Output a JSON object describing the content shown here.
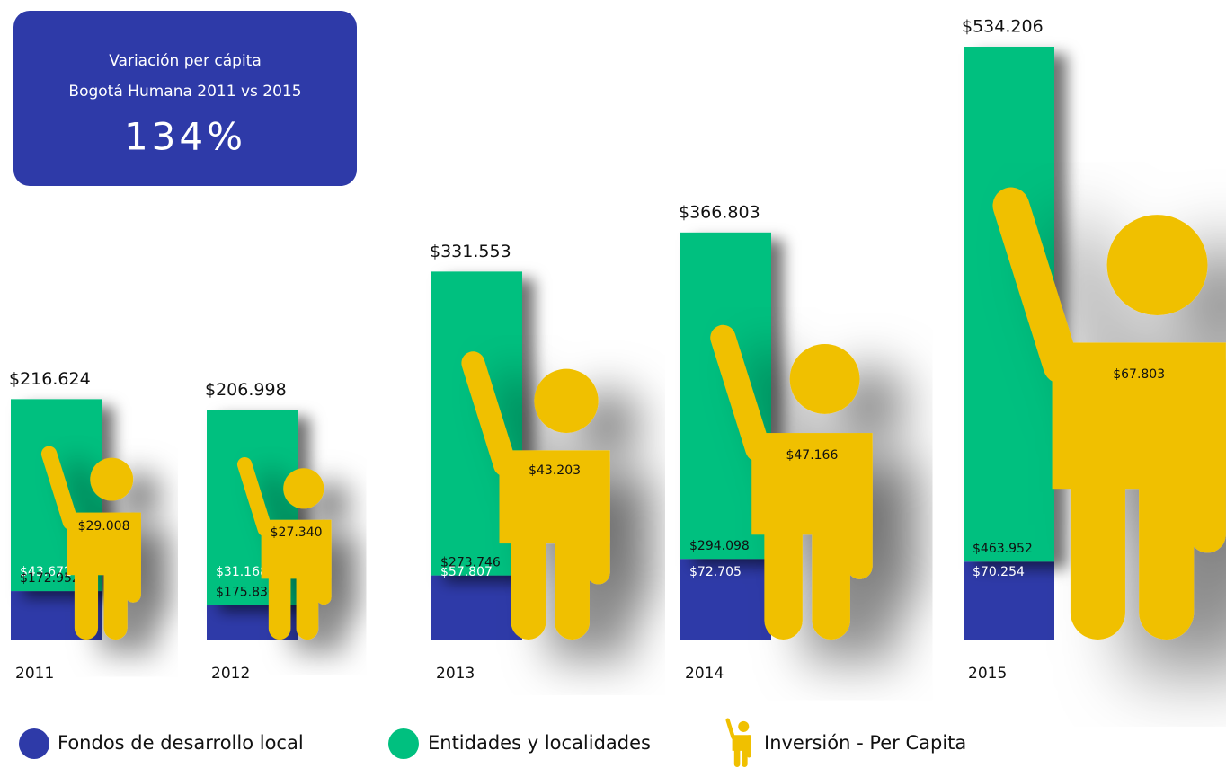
{
  "chart_data": {
    "type": "bar",
    "annotation": {
      "lines": [
        "Variación per cápita",
        "Bogotá Humana 2011 vs 2015"
      ],
      "value": 134,
      "value_label": "134%"
    },
    "categories": [
      "2011",
      "2012",
      "2013",
      "2014",
      "2015"
    ],
    "series": [
      {
        "name": "Fondos de desarrollo local",
        "color": "#2e3aa8",
        "values": [
          43672,
          31168,
          57807,
          72705,
          70254
        ],
        "value_labels": [
          "$43.672",
          "$31.168",
          "$57.807",
          "$72.705",
          "$70.254"
        ]
      },
      {
        "name": "Entidades y localidades",
        "color": "#00c07f",
        "values": [
          172952,
          175830,
          273746,
          294098,
          463952
        ],
        "value_labels": [
          "$172.952",
          "$175.830",
          "$273.746",
          "$294.098",
          "$463.952"
        ]
      }
    ],
    "totals": [
      216624,
      206998,
      331553,
      366803,
      534206
    ],
    "total_labels": [
      "$216.624",
      "$206.998",
      "$331.553",
      "$366.803",
      "$534.206"
    ],
    "per_capita": {
      "name": "Inversión - Per Capita",
      "color": "#f0c000",
      "values": [
        29008,
        27340,
        43203,
        47166,
        67803
      ],
      "value_labels": [
        "$29.008",
        "$27.340",
        "$43.203",
        "$47.166",
        "$67.803"
      ]
    }
  }
}
